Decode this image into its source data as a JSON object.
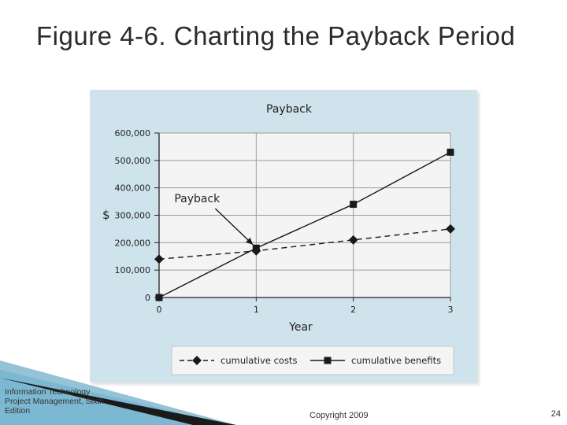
{
  "slide": {
    "title": "Figure 4-6. Charting the Payback Period",
    "footer_lines": [
      "Information Technology",
      "Project Management, Sixth",
      "Edition"
    ],
    "copyright": "Copyright 2009",
    "page_number": "24"
  },
  "colors": {
    "panel_bg": "#cfe3ec",
    "plot_bg": "#f4f4f4",
    "grid": "#9c9c9c",
    "axis": "#222222",
    "series": "#1a1a1a"
  },
  "chart_data": {
    "type": "line",
    "title": "Payback",
    "xlabel": "Year",
    "ylabel": "$",
    "x": [
      0,
      1,
      2,
      3
    ],
    "x_ticks": [
      "0",
      "1",
      "2",
      "3"
    ],
    "y_ticks": [
      "0",
      "100,000",
      "200,000",
      "300,000",
      "400,000",
      "500,000",
      "600,000"
    ],
    "ylim": [
      0,
      600000
    ],
    "xlim": [
      0,
      3
    ],
    "grid": true,
    "legend_position": "bottom",
    "series": [
      {
        "name": "cumulative costs",
        "values": [
          140000,
          170000,
          210000,
          250000
        ],
        "style": "dashed",
        "marker": "diamond"
      },
      {
        "name": "cumulative benefits",
        "values": [
          0,
          180000,
          340000,
          530000
        ],
        "style": "solid",
        "marker": "square"
      }
    ],
    "annotations": [
      {
        "text": "Payback",
        "x": 1,
        "y": 175000
      }
    ]
  }
}
